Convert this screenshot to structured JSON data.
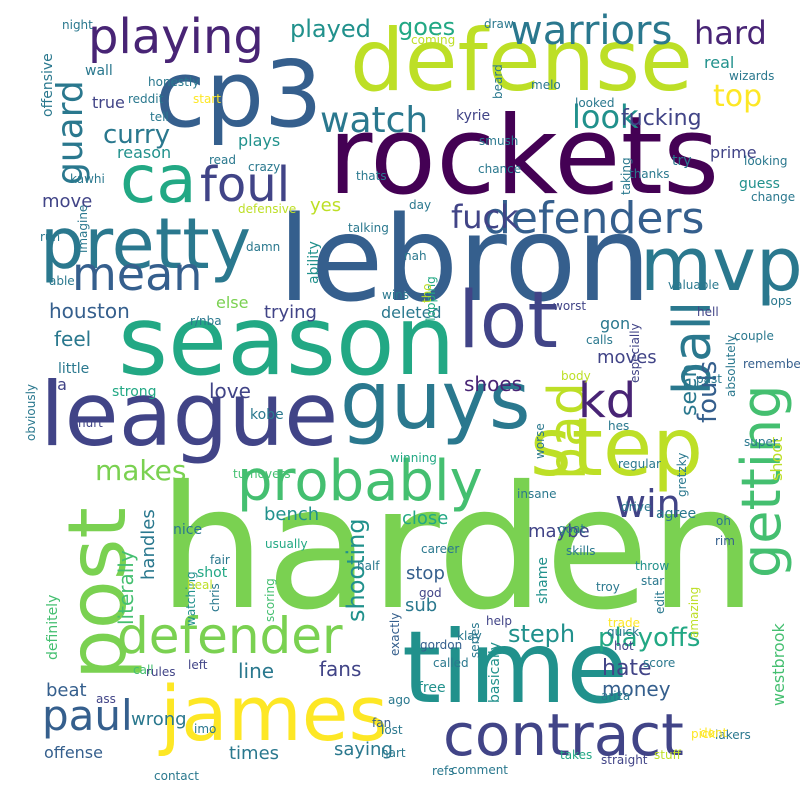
{
  "palette": {
    "background": "#ffffff",
    "colors": [
      "#440154",
      "#482475",
      "#414487",
      "#355f8d",
      "#2a788e",
      "#21918c",
      "#22a884",
      "#44bf70",
      "#7ad151",
      "#bddf26",
      "#fde725"
    ]
  },
  "words": [
    {
      "text": "harden",
      "color": "#7ad151"
    },
    {
      "text": "lebron",
      "color": "#355f8d"
    },
    {
      "text": "rockets",
      "color": "#440154"
    },
    {
      "text": "time",
      "color": "#21918c"
    },
    {
      "text": "season",
      "color": "#22a884"
    },
    {
      "text": "cp3",
      "color": "#355f8d"
    },
    {
      "text": "defense",
      "color": "#bddf26"
    },
    {
      "text": "league",
      "color": "#414487"
    },
    {
      "text": "guys",
      "color": "#2a788e"
    },
    {
      "text": "post",
      "color": "#7ad151"
    },
    {
      "text": "james",
      "color": "#fde725"
    },
    {
      "text": "step",
      "color": "#bddf26"
    },
    {
      "text": "pretty",
      "color": "#2a788e"
    },
    {
      "text": "mvp",
      "color": "#2a788e"
    },
    {
      "text": "lot",
      "color": "#414487"
    },
    {
      "text": "ca",
      "color": "#22a884"
    },
    {
      "text": "contract",
      "color": "#414487"
    },
    {
      "text": "probably",
      "color": "#44bf70"
    },
    {
      "text": "defender",
      "color": "#7ad151"
    },
    {
      "text": "getting",
      "color": "#44bf70"
    },
    {
      "text": "ball",
      "color": "#2a788e"
    },
    {
      "text": "bad",
      "color": "#bddf26"
    },
    {
      "text": "foul",
      "color": "#414487"
    },
    {
      "text": "playing",
      "color": "#482475"
    },
    {
      "text": "defenders",
      "color": "#355f8d"
    },
    {
      "text": "mean",
      "color": "#355f8d"
    },
    {
      "text": "kd",
      "color": "#482475"
    },
    {
      "text": "paul",
      "color": "#355f8d"
    },
    {
      "text": "warriors",
      "color": "#2a788e"
    },
    {
      "text": "guard",
      "color": "#2a788e"
    },
    {
      "text": "watch",
      "color": "#2a788e"
    },
    {
      "text": "win",
      "color": "#414487"
    },
    {
      "text": "hard",
      "color": "#482475"
    },
    {
      "text": "top",
      "color": "#fde725"
    },
    {
      "text": "fuck",
      "color": "#414487"
    },
    {
      "text": "makes",
      "color": "#7ad151"
    },
    {
      "text": "curry",
      "color": "#2a788e"
    },
    {
      "text": "look",
      "color": "#21918c"
    },
    {
      "text": "playoffs",
      "color": "#22a884"
    },
    {
      "text": "steph",
      "color": "#21918c"
    },
    {
      "text": "shooting",
      "color": "#21918c"
    },
    {
      "text": "played",
      "color": "#21918c"
    },
    {
      "text": "goes",
      "color": "#22a884"
    },
    {
      "text": "fucking",
      "color": "#414487"
    },
    {
      "text": "fouls",
      "color": "#355f8d"
    },
    {
      "text": "seen",
      "color": "#2a788e"
    },
    {
      "text": "shoes",
      "color": "#482475"
    },
    {
      "text": "money",
      "color": "#355f8d"
    },
    {
      "text": "hate",
      "color": "#414487"
    },
    {
      "text": "fans",
      "color": "#414487"
    },
    {
      "text": "line",
      "color": "#2a788e"
    },
    {
      "text": "houston",
      "color": "#355f8d"
    },
    {
      "text": "handles",
      "color": "#2a788e"
    },
    {
      "text": "literally",
      "color": "#44bf70"
    },
    {
      "text": "love",
      "color": "#414487"
    },
    {
      "text": "feel",
      "color": "#2a788e"
    },
    {
      "text": "trying",
      "color": "#414487"
    },
    {
      "text": "bench",
      "color": "#21918c"
    },
    {
      "text": "close",
      "color": "#22a884"
    },
    {
      "text": "maybe",
      "color": "#414487"
    },
    {
      "text": "stop",
      "color": "#355f8d"
    },
    {
      "text": "sub",
      "color": "#2a788e"
    },
    {
      "text": "beat",
      "color": "#355f8d"
    },
    {
      "text": "wrong",
      "color": "#2a788e"
    },
    {
      "text": "times",
      "color": "#2a788e"
    },
    {
      "text": "saying",
      "color": "#2a788e"
    },
    {
      "text": "offense",
      "color": "#355f8d"
    },
    {
      "text": "moves",
      "color": "#414487"
    },
    {
      "text": "shoot",
      "color": "#bddf26"
    },
    {
      "text": "westbrook",
      "color": "#44bf70"
    },
    {
      "text": "plays",
      "color": "#21918c"
    },
    {
      "text": "move",
      "color": "#414487"
    },
    {
      "text": "true",
      "color": "#414487"
    },
    {
      "text": "yes",
      "color": "#bddf26"
    },
    {
      "text": "else",
      "color": "#7ad151"
    },
    {
      "text": "deleted",
      "color": "#2a788e"
    },
    {
      "text": "gon",
      "color": "#2a788e"
    },
    {
      "text": "reason",
      "color": "#21918c"
    },
    {
      "text": "real",
      "color": "#21918c"
    },
    {
      "text": "wall",
      "color": "#2a788e"
    },
    {
      "text": "try",
      "color": "#2a788e"
    },
    {
      "text": "prime",
      "color": "#414487"
    },
    {
      "text": "guess",
      "color": "#21918c"
    },
    {
      "text": "kyrie",
      "color": "#414487"
    },
    {
      "text": "little",
      "color": "#2a788e"
    },
    {
      "text": "strong",
      "color": "#22a884"
    },
    {
      "text": "kobe",
      "color": "#2a788e"
    },
    {
      "text": "na",
      "color": "#414487"
    },
    {
      "text": "nice",
      "color": "#2a788e"
    },
    {
      "text": "shot",
      "color": "#22a884"
    },
    {
      "text": "agree",
      "color": "#2a788e"
    },
    {
      "text": "free",
      "color": "#21918c"
    },
    {
      "text": "ability",
      "color": "#21918c"
    },
    {
      "text": "definitely",
      "color": "#44bf70"
    },
    {
      "text": "shame",
      "color": "#21918c"
    },
    {
      "text": "basically",
      "color": "#21918c"
    },
    {
      "text": "hurt",
      "color": "#414487"
    },
    {
      "text": "offensive",
      "color": "#2a788e"
    },
    {
      "text": "crazy",
      "color": "#2a788e"
    },
    {
      "text": "goat",
      "color": "#2a788e"
    },
    {
      "text": "chris",
      "color": "#2a788e"
    },
    {
      "text": "watching",
      "color": "#21918c"
    },
    {
      "text": "scoring",
      "color": "#44bf70"
    },
    {
      "text": "throw",
      "color": "#21918c"
    },
    {
      "text": "rim",
      "color": "#355f8d"
    },
    {
      "text": "ariza",
      "color": "#2a788e"
    },
    {
      "text": "call",
      "color": "#44bf70"
    },
    {
      "text": "remember",
      "color": "#355f8d"
    },
    {
      "text": "flopping",
      "color": "#22a884"
    },
    {
      "text": "hes",
      "color": "#2a788e"
    },
    {
      "text": "regular",
      "color": "#2a788e"
    },
    {
      "text": "drive",
      "color": "#2a788e"
    },
    {
      "text": "exactly",
      "color": "#355f8d"
    },
    {
      "text": "gordon",
      "color": "#355f8d"
    },
    {
      "text": "trade",
      "color": "#fde725"
    },
    {
      "text": "hot",
      "color": "#414487"
    },
    {
      "text": "quick",
      "color": "#2a788e"
    },
    {
      "text": "score",
      "color": "#2a788e"
    },
    {
      "text": "ago",
      "color": "#2a788e"
    },
    {
      "text": "series",
      "color": "#2a788e"
    },
    {
      "text": "klay",
      "color": "#2a788e"
    },
    {
      "text": "help",
      "color": "#414487"
    },
    {
      "text": "lakers",
      "color": "#2a788e"
    },
    {
      "text": "pick",
      "color": "#fde725"
    },
    {
      "text": "comment",
      "color": "#2a788e"
    },
    {
      "text": "fan",
      "color": "#355f8d"
    },
    {
      "text": "hart",
      "color": "#2a788e"
    },
    {
      "text": "lost",
      "color": "#2a788e"
    },
    {
      "text": "dont",
      "color": "#fde725"
    },
    {
      "text": "stuff",
      "color": "#bddf26"
    },
    {
      "text": "straight",
      "color": "#414487"
    },
    {
      "text": "takes",
      "color": "#22a884"
    },
    {
      "text": "refs",
      "color": "#2a788e"
    },
    {
      "text": "imo",
      "color": "#2a788e"
    },
    {
      "text": "rules",
      "color": "#414487"
    },
    {
      "text": "ass",
      "color": "#414487"
    },
    {
      "text": "left",
      "color": "#414487"
    },
    {
      "text": "contact",
      "color": "#2a788e"
    },
    {
      "text": "usually",
      "color": "#22a884"
    },
    {
      "text": "fair",
      "color": "#2a788e"
    },
    {
      "text": "half",
      "color": "#2a788e"
    },
    {
      "text": "career",
      "color": "#2a788e"
    },
    {
      "text": "god",
      "color": "#414487"
    },
    {
      "text": "called",
      "color": "#2a788e"
    },
    {
      "text": "beal",
      "color": "#bddf26"
    },
    {
      "text": "turnovers",
      "color": "#44bf70"
    },
    {
      "text": "winning",
      "color": "#22a884"
    },
    {
      "text": "insane",
      "color": "#2a788e"
    },
    {
      "text": "skills",
      "color": "#2a788e"
    },
    {
      "text": "star",
      "color": "#2a788e"
    },
    {
      "text": "troy",
      "color": "#2a788e"
    },
    {
      "text": "edit",
      "color": "#2a788e"
    },
    {
      "text": "amazing",
      "color": "#bddf26"
    },
    {
      "text": "gretzky",
      "color": "#2a788e"
    },
    {
      "text": "oh",
      "color": "#2a788e"
    },
    {
      "text": "super",
      "color": "#2a788e"
    },
    {
      "text": "absolutely",
      "color": "#2a788e"
    },
    {
      "text": "past",
      "color": "#2a788e"
    },
    {
      "text": "body",
      "color": "#bddf26"
    },
    {
      "text": "worse",
      "color": "#2a788e"
    },
    {
      "text": "obviously",
      "color": "#2a788e"
    },
    {
      "text": "especially",
      "color": "#414487"
    },
    {
      "text": "worst",
      "color": "#414487"
    },
    {
      "text": "valuable",
      "color": "#2a788e"
    },
    {
      "text": "flops",
      "color": "#2a788e"
    },
    {
      "text": "couple",
      "color": "#2a788e"
    },
    {
      "text": "hell",
      "color": "#414487"
    },
    {
      "text": "calls",
      "color": "#2a788e"
    },
    {
      "text": "wins",
      "color": "#2a788e"
    },
    {
      "text": "r/nba",
      "color": "#2a788e"
    },
    {
      "text": "tho",
      "color": "#bddf26"
    },
    {
      "text": "nah",
      "color": "#2a788e"
    },
    {
      "text": "talking",
      "color": "#2a788e"
    },
    {
      "text": "damn",
      "color": "#2a788e"
    },
    {
      "text": "able",
      "color": "#2a788e"
    },
    {
      "text": "run",
      "color": "#2a788e"
    },
    {
      "text": "defensive",
      "color": "#bddf26"
    },
    {
      "text": "day",
      "color": "#2a788e"
    },
    {
      "text": "imagine",
      "color": "#2a788e"
    },
    {
      "text": "kawhi",
      "color": "#2a788e"
    },
    {
      "text": "read",
      "color": "#2a788e"
    },
    {
      "text": "thats",
      "color": "#2a788e"
    },
    {
      "text": "chance",
      "color": "#2a788e"
    },
    {
      "text": "taking",
      "color": "#2a788e"
    },
    {
      "text": "thanks",
      "color": "#2a788e"
    },
    {
      "text": "looking",
      "color": "#2a788e"
    },
    {
      "text": "change",
      "color": "#2a788e"
    },
    {
      "text": "tell",
      "color": "#2a788e"
    },
    {
      "text": "start",
      "color": "#fde725"
    },
    {
      "text": "reddit",
      "color": "#2a788e"
    },
    {
      "text": "honestly",
      "color": "#2a788e"
    },
    {
      "text": "night",
      "color": "#2a788e"
    },
    {
      "text": "draw",
      "color": "#2a788e"
    },
    {
      "text": "coming",
      "color": "#bddf26"
    },
    {
      "text": "beard",
      "color": "#2a788e"
    },
    {
      "text": "melo",
      "color": "#2a788e"
    },
    {
      "text": "smush",
      "color": "#2a788e"
    },
    {
      "text": "looked",
      "color": "#2a788e"
    },
    {
      "text": "wizards",
      "color": "#2a788e"
    }
  ]
}
